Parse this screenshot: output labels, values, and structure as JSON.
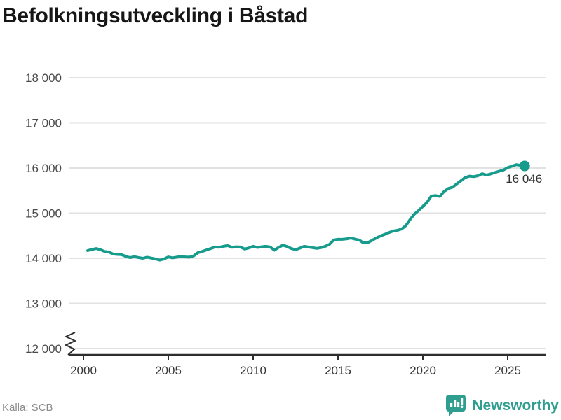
{
  "header": {
    "title": "Befolkningsutveckling i Båstad"
  },
  "footer": {
    "source": "Källa: SCB",
    "brand": "Newsworthy"
  },
  "colors": {
    "background": "#ffffff",
    "title": "#161616",
    "line": "#169b8c",
    "end_dot": "#169b8c",
    "grid": "#e2e2e2",
    "axis": "#2e2e2e",
    "y_tick_label": "#4a4a4a",
    "x_tick_label": "#333333",
    "annotation": "#333333",
    "source_text": "#8a8a8a",
    "brand_teal": "#2f9e90"
  },
  "chart_data": {
    "type": "line",
    "title": "Befolkningsutveckling i Båstad",
    "xlabel": "",
    "ylabel": "",
    "grid": "horizontal",
    "legend": "none",
    "axis_break_at_bottom": true,
    "xlim": [
      1999.1,
      2027.3
    ],
    "ylim": [
      12000,
      18000
    ],
    "x_ticks": [
      2000,
      2005,
      2010,
      2015,
      2020,
      2025
    ],
    "x_tick_labels": [
      "2000",
      "2005",
      "2010",
      "2015",
      "2020",
      "2025"
    ],
    "y_ticks": [
      12000,
      13000,
      14000,
      15000,
      16000,
      17000,
      18000
    ],
    "y_tick_labels": [
      "12 000",
      "13 000",
      "14 000",
      "15 000",
      "16 000",
      "17 000",
      "18 000"
    ],
    "x_start": 2000.25,
    "x_step": 0.25,
    "values": [
      14170,
      14195,
      14215,
      14190,
      14150,
      14140,
      14095,
      14085,
      14080,
      14040,
      14015,
      14035,
      14015,
      14000,
      14025,
      14005,
      13985,
      13960,
      13985,
      14030,
      14010,
      14025,
      14045,
      14030,
      14025,
      14055,
      14125,
      14150,
      14185,
      14215,
      14250,
      14245,
      14265,
      14280,
      14245,
      14255,
      14250,
      14205,
      14230,
      14265,
      14240,
      14255,
      14265,
      14250,
      14180,
      14240,
      14290,
      14260,
      14215,
      14190,
      14225,
      14265,
      14250,
      14235,
      14220,
      14235,
      14265,
      14310,
      14405,
      14420,
      14420,
      14430,
      14450,
      14425,
      14405,
      14340,
      14345,
      14395,
      14450,
      14495,
      14530,
      14570,
      14605,
      14620,
      14650,
      14725,
      14860,
      14980,
      15060,
      15150,
      15240,
      15380,
      15390,
      15370,
      15480,
      15545,
      15575,
      15650,
      15720,
      15790,
      15820,
      15810,
      15830,
      15875,
      15845,
      15870,
      15900,
      15930,
      15955,
      16010,
      16040,
      16075,
      16060,
      16046
    ],
    "end_value": 16046,
    "end_label": "16 046"
  }
}
